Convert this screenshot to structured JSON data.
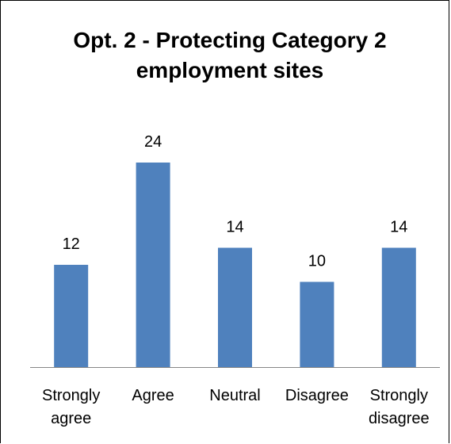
{
  "chart_data": {
    "type": "bar",
    "title": "Opt. 2 - Protecting Category 2 employment sites",
    "categories": [
      [
        "Strongly",
        "agree"
      ],
      [
        "Agree"
      ],
      [
        "Neutral"
      ],
      [
        "Disagree"
      ],
      [
        "Strongly",
        "disagree"
      ]
    ],
    "values": [
      12,
      24,
      14,
      10,
      14
    ],
    "data_labels": [
      "12",
      "24",
      "14",
      "10",
      "14"
    ],
    "ylim": [
      0,
      30
    ],
    "grid": false,
    "legend": "none",
    "bar_color": "#4f81bd"
  }
}
